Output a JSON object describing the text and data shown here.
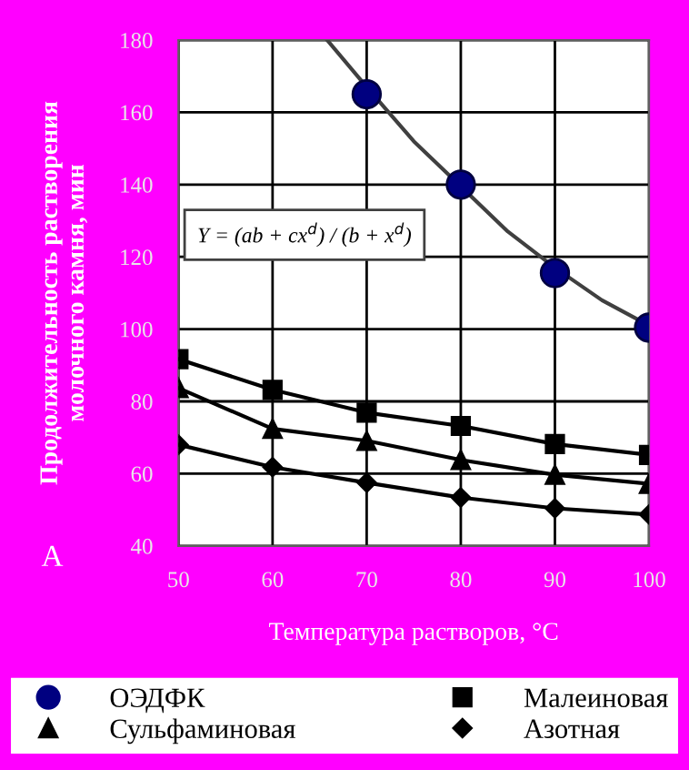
{
  "chart_data": {
    "type": "line",
    "xlabel": "Температура растворов, °C",
    "ylabel": "Продолжительность растворения\nмолочного камня, мин",
    "x": [
      50,
      60,
      70,
      80,
      90,
      100
    ],
    "series": [
      {
        "name": "ОЭДФК",
        "type": "scatter",
        "marker": "circle",
        "color": "#000080",
        "x": [
          70,
          80,
          90,
          100
        ],
        "values": [
          165,
          140,
          115.5,
          100.4
        ]
      },
      {
        "type": "line",
        "marker": "none",
        "color": "#404040",
        "x": [
          65.8,
          70,
          75,
          80,
          85,
          90,
          95,
          100
        ],
        "values": [
          180,
          167,
          152,
          139.5,
          127,
          117,
          108,
          101
        ]
      },
      {
        "name": "Малеиновая",
        "marker": "square",
        "color": "#000000",
        "values": [
          91.7,
          83.2,
          76.9,
          73.2,
          68.2,
          65.2
        ]
      },
      {
        "name": "Сульфаминовая",
        "marker": "triangle",
        "color": "#000000",
        "values": [
          83.7,
          72.4,
          69.1,
          63.8,
          59.7,
          57.2
        ]
      },
      {
        "name": "Азотная",
        "marker": "diamond",
        "color": "#000000",
        "values": [
          68.0,
          61.8,
          57.5,
          53.4,
          50.4,
          48.7
        ]
      }
    ],
    "xlim": [
      50,
      100
    ],
    "xticks": [
      50,
      60,
      70,
      80,
      90,
      100
    ],
    "ylim": [
      40,
      180
    ],
    "yticks": [
      40,
      60,
      80,
      100,
      120,
      140,
      160,
      180
    ],
    "grid": true,
    "legend": "bottom",
    "annotations": [
      "Y = (ab + cx$^{d}$) / (b + x$^{d}$)",
      "A"
    ]
  }
}
